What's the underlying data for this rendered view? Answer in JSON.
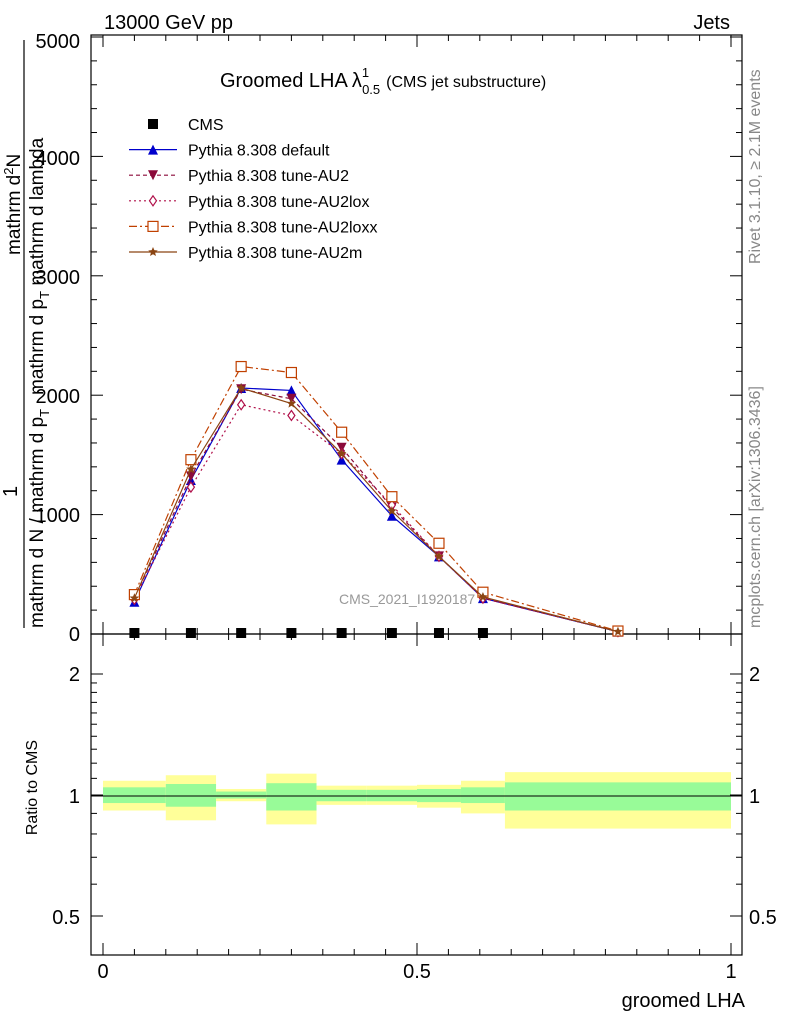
{
  "header": {
    "left": "13000 GeV pp",
    "right": "Jets"
  },
  "side_labels": {
    "rivet": "Rivet 3.1.10, ≥ 2.1M events",
    "mcplots": "mcplots.cern.ch [arXiv:1306.3436]"
  },
  "watermark": "CMS_2021_I1920187",
  "title": {
    "main": "Groomed LHA",
    "symbol": "λ",
    "sup": "1",
    "sub": "0.5",
    "paren": "(CMS jet substructure)"
  },
  "ylabel_main": {
    "num": "1",
    "frac_lower": "mathrm d N / mathrm d p",
    "frac_lower_sub": "T",
    "frac_upper": "mathrm d",
    "frac_upper_sup": "2",
    "frac_upper_rest": "N",
    "frac_upper_line2": "mathrm d p",
    "frac_upper_line2_sub": "T",
    "frac_upper_line2_rest": " mathrm d lambda"
  },
  "ylabel_ratio": "Ratio to CMS",
  "xlabel": "groomed LHA",
  "colors": {
    "cms": "#000000",
    "default": "#0000cc",
    "au2": "#8b0a3a",
    "au2lox": "#b0104a",
    "au2loxx": "#c04000",
    "au2m": "#8b4513",
    "band_inner": "#98fb98",
    "band_outer": "#ffff99"
  },
  "chart_data": [
    {
      "type": "line",
      "panel": "main",
      "ylim": [
        0,
        5000
      ],
      "xlim": [
        -0.02,
        1.0
      ],
      "y_ticks": [
        "0",
        "1000",
        "2000",
        "3000",
        "4000",
        "5000"
      ],
      "legend": [
        "CMS",
        "Pythia 8.308 default",
        "Pythia 8.308 tune-AU2",
        "Pythia 8.308 tune-AU2lox",
        "Pythia 8.308 tune-AU2loxx",
        "Pythia 8.308 tune-AU2m"
      ],
      "legend_placement": "top-left",
      "series": [
        {
          "name": "CMS",
          "key": "cms",
          "marker": "square",
          "x": [
            0.05,
            0.14,
            0.22,
            0.3,
            0.38,
            0.46,
            0.535,
            0.605
          ],
          "y": [
            0,
            0,
            0,
            0,
            0,
            0,
            0,
            0
          ]
        },
        {
          "name": "Pythia 8.308 default",
          "key": "default",
          "marker": "triangle-up",
          "dash": "",
          "x": [
            0.05,
            0.14,
            0.22,
            0.3,
            0.38,
            0.46,
            0.535,
            0.605,
            0.82
          ],
          "y": [
            270,
            1290,
            2060,
            2040,
            1460,
            990,
            650,
            300,
            20
          ]
        },
        {
          "name": "Pythia 8.308 tune-AU2",
          "key": "au2",
          "marker": "triangle-down",
          "dash": "4,3",
          "x": [
            0.05,
            0.14,
            0.22,
            0.3,
            0.38,
            0.46,
            0.535,
            0.605,
            0.82
          ],
          "y": [
            300,
            1320,
            2050,
            1970,
            1560,
            1060,
            650,
            300,
            20
          ]
        },
        {
          "name": "Pythia 8.308 tune-AU2lox",
          "key": "au2lox",
          "marker": "diamond-open",
          "dash": "2,3",
          "x": [
            0.05,
            0.14,
            0.22,
            0.3,
            0.38,
            0.46,
            0.535,
            0.605,
            0.82
          ],
          "y": [
            290,
            1230,
            1920,
            1830,
            1510,
            1080,
            650,
            300,
            20
          ]
        },
        {
          "name": "Pythia 8.308 tune-AU2loxx",
          "key": "au2loxx",
          "marker": "square-open",
          "dash": "8,3,2,3",
          "x": [
            0.05,
            0.14,
            0.22,
            0.3,
            0.38,
            0.46,
            0.535,
            0.605,
            0.82
          ],
          "y": [
            330,
            1460,
            2240,
            2190,
            1690,
            1150,
            760,
            350,
            25
          ]
        },
        {
          "name": "Pythia 8.308 tune-AU2m",
          "key": "au2m",
          "marker": "star",
          "dash": "",
          "x": [
            0.05,
            0.14,
            0.22,
            0.3,
            0.38,
            0.46,
            0.535,
            0.605,
            0.82
          ],
          "y": [
            300,
            1380,
            2060,
            1930,
            1510,
            1030,
            650,
            310,
            20
          ]
        }
      ]
    },
    {
      "type": "area",
      "panel": "ratio",
      "ylim": [
        0.3,
        2.3
      ],
      "y_ticks": [
        "0.5",
        "1",
        "2"
      ],
      "x_ticks": [
        "0",
        "0.5",
        "1"
      ],
      "reference": 1,
      "bins": [
        {
          "x": [
            0.0,
            0.1
          ],
          "inner": [
            0.955,
            1.045
          ],
          "outer": [
            0.915,
            1.085
          ]
        },
        {
          "x": [
            0.1,
            0.18
          ],
          "inner": [
            0.935,
            1.065
          ],
          "outer": [
            0.865,
            1.12
          ]
        },
        {
          "x": [
            0.18,
            0.26
          ],
          "inner": [
            0.98,
            1.02
          ],
          "outer": [
            0.965,
            1.035
          ]
        },
        {
          "x": [
            0.26,
            0.34
          ],
          "inner": [
            0.915,
            1.07
          ],
          "outer": [
            0.845,
            1.13
          ]
        },
        {
          "x": [
            0.34,
            0.42
          ],
          "inner": [
            0.965,
            1.03
          ],
          "outer": [
            0.945,
            1.055
          ]
        },
        {
          "x": [
            0.42,
            0.5
          ],
          "inner": [
            0.965,
            1.03
          ],
          "outer": [
            0.945,
            1.055
          ]
        },
        {
          "x": [
            0.5,
            0.57
          ],
          "inner": [
            0.96,
            1.035
          ],
          "outer": [
            0.93,
            1.06
          ]
        },
        {
          "x": [
            0.57,
            0.64
          ],
          "inner": [
            0.955,
            1.045
          ],
          "outer": [
            0.9,
            1.085
          ]
        },
        {
          "x": [
            0.64,
            1.0
          ],
          "inner": [
            0.915,
            1.075
          ],
          "outer": [
            0.825,
            1.14
          ]
        }
      ]
    }
  ]
}
